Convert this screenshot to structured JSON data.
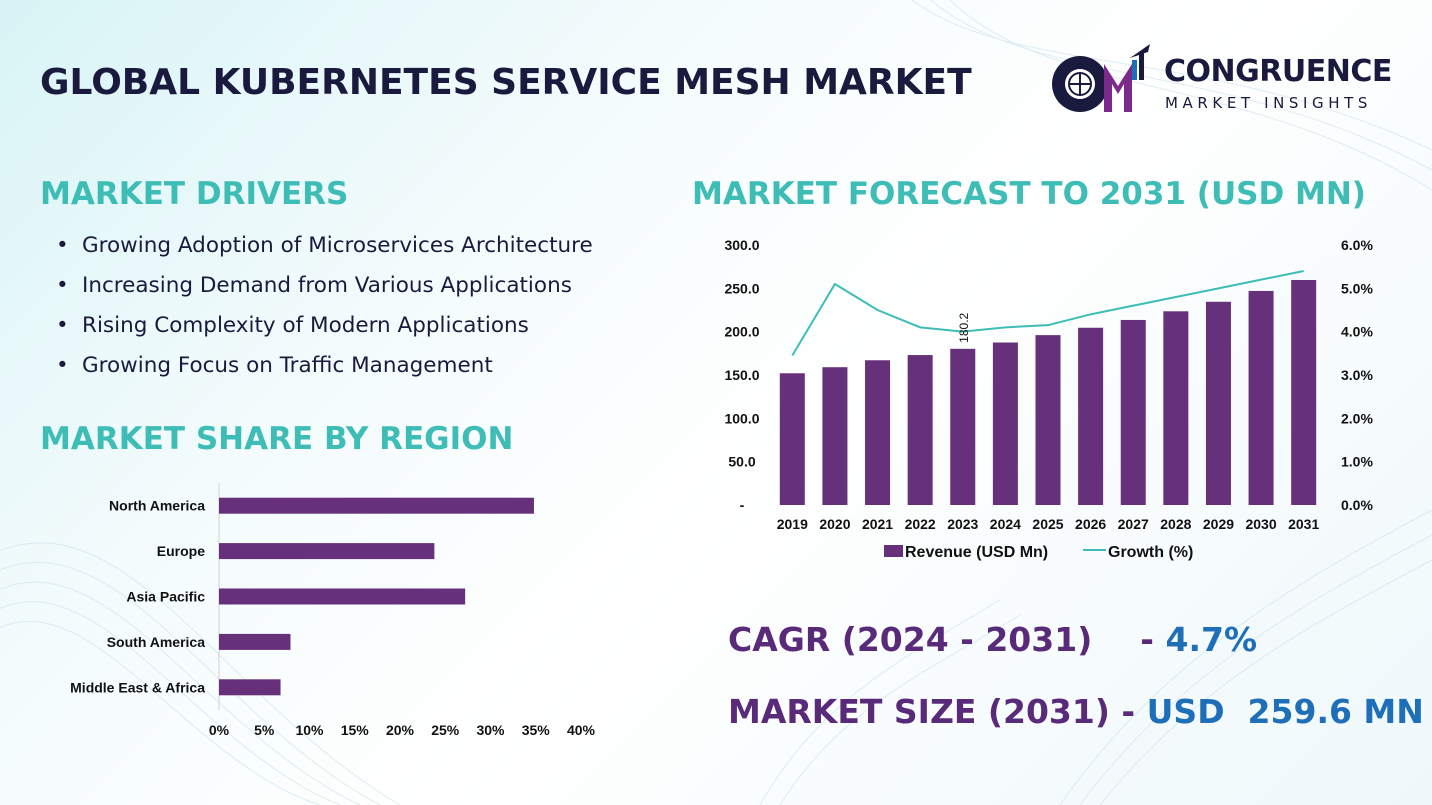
{
  "header": {
    "title": "GLOBAL KUBERNETES SERVICE MESH MARKET",
    "logo_name": "CONGRUENCE",
    "logo_sub": "MARKET INSIGHTS"
  },
  "drivers": {
    "heading": "MARKET DRIVERS",
    "items": [
      "Growing Adoption of Microservices Architecture",
      "Increasing Demand from Various Applications",
      "Rising Complexity of Modern Applications",
      "Growing Focus on Traffic Management"
    ]
  },
  "region": {
    "heading": "MARKET SHARE BY REGION"
  },
  "forecast": {
    "heading": "MARKET FORECAST TO 2031 (USD MN)"
  },
  "stats": {
    "cagr_label": "CAGR (2024 - 2031)",
    "cagr_sep": "-",
    "cagr_value": "4.7%",
    "size_label": "MARKET SIZE (2031)",
    "size_sep": "-",
    "size_value": "USD  259.6 MN"
  },
  "colors": {
    "bar": "#66307a",
    "line": "#3dbdb6",
    "heading": "#3dbdb6",
    "title": "#1a1a3e",
    "stat_label": "#5a2a7a",
    "stat_value": "#1f6fb8"
  },
  "chart_data": [
    {
      "type": "bar",
      "orientation": "horizontal",
      "categories": [
        "North America",
        "Europe",
        "Asia Pacific",
        "South America",
        "Middle East & Africa"
      ],
      "values": [
        34.8,
        23.8,
        27.2,
        7.9,
        6.8
      ],
      "xlim": [
        0,
        40
      ],
      "x_ticks": [
        "0%",
        "5%",
        "10%",
        "15%",
        "20%",
        "25%",
        "30%",
        "35%",
        "40%"
      ],
      "grid": false
    },
    {
      "type": "bar",
      "categories": [
        "2019",
        "2020",
        "2021",
        "2022",
        "2023",
        "2024",
        "2025",
        "2026",
        "2027",
        "2028",
        "2029",
        "2030",
        "2031"
      ],
      "series": [
        {
          "name": "Revenue (USD Mn)",
          "type": "bar",
          "axis": "left",
          "values": [
            152,
            159,
            167,
            173,
            180.2,
            187.5,
            196,
            204.5,
            213.5,
            223.5,
            234.5,
            247,
            259.6
          ]
        },
        {
          "name": "Growth (%)",
          "type": "line",
          "axis": "right",
          "values": [
            3.45,
            5.1,
            4.5,
            4.1,
            4.0,
            4.1,
            4.15,
            4.4,
            4.6,
            4.8,
            5.0,
            5.2,
            5.4
          ]
        }
      ],
      "ylim": [
        0,
        300
      ],
      "y_ticks": [
        "-",
        "50.0",
        "100.0",
        "150.0",
        "200.0",
        "250.0",
        "300.0"
      ],
      "y2lim": [
        0,
        6
      ],
      "y2_ticks": [
        "0.0%",
        "1.0%",
        "2.0%",
        "3.0%",
        "4.0%",
        "5.0%",
        "6.0%"
      ],
      "data_labels": [
        {
          "category": "2023",
          "text": "180.2"
        }
      ],
      "legend": "bottom",
      "grid": false
    }
  ]
}
